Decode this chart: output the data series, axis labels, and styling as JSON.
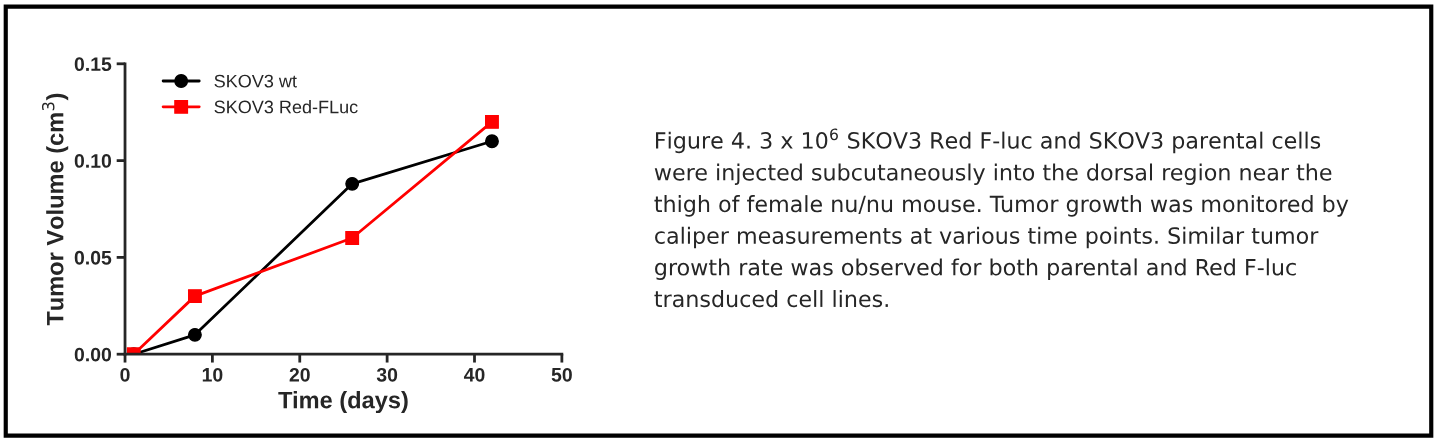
{
  "chart_data": {
    "type": "line",
    "xlabel": "Time (days)",
    "ylabel": "Tumor Volume (cm$^{3}$)",
    "xlim": [
      0,
      50
    ],
    "xticks": [
      0,
      10,
      20,
      30,
      40,
      50
    ],
    "ylim": [
      0,
      0.15
    ],
    "yticks": [
      {
        "value": 0,
        "label": "0.00"
      },
      {
        "value": 0.05,
        "label": "0.05"
      },
      {
        "value": 0.1,
        "label": "0.10"
      },
      {
        "value": 0.15,
        "label": "0.15"
      }
    ],
    "series": [
      {
        "name": "SKOV3 wt",
        "color": "#000000",
        "marker": "circle",
        "x": [
          1,
          8,
          26,
          42
        ],
        "values": [
          0,
          0.01,
          0.088,
          0.11
        ]
      },
      {
        "name": "SKOV3 Red-FLuc",
        "color": "#ff0000",
        "marker": "square",
        "x": [
          1,
          8,
          26,
          42
        ],
        "values": [
          0,
          0.03,
          0.06,
          0.12
        ]
      }
    ],
    "legend": "top left",
    "grid": false,
    "annotations": [
      "Figure 4. 3 x 10$^{6}$ SKOV3 Red F-luc and SKOV3 parental cells\nwere injected subcutaneously into the dorsal region near the\nthigh of female nu/nu mouse. Tumor growth was monitored by\ncaliper measurements at various time points. Similar tumor\ngrowth rate was observed for both parental and Red F-luc\ntransduced cell lines."
    ]
  }
}
